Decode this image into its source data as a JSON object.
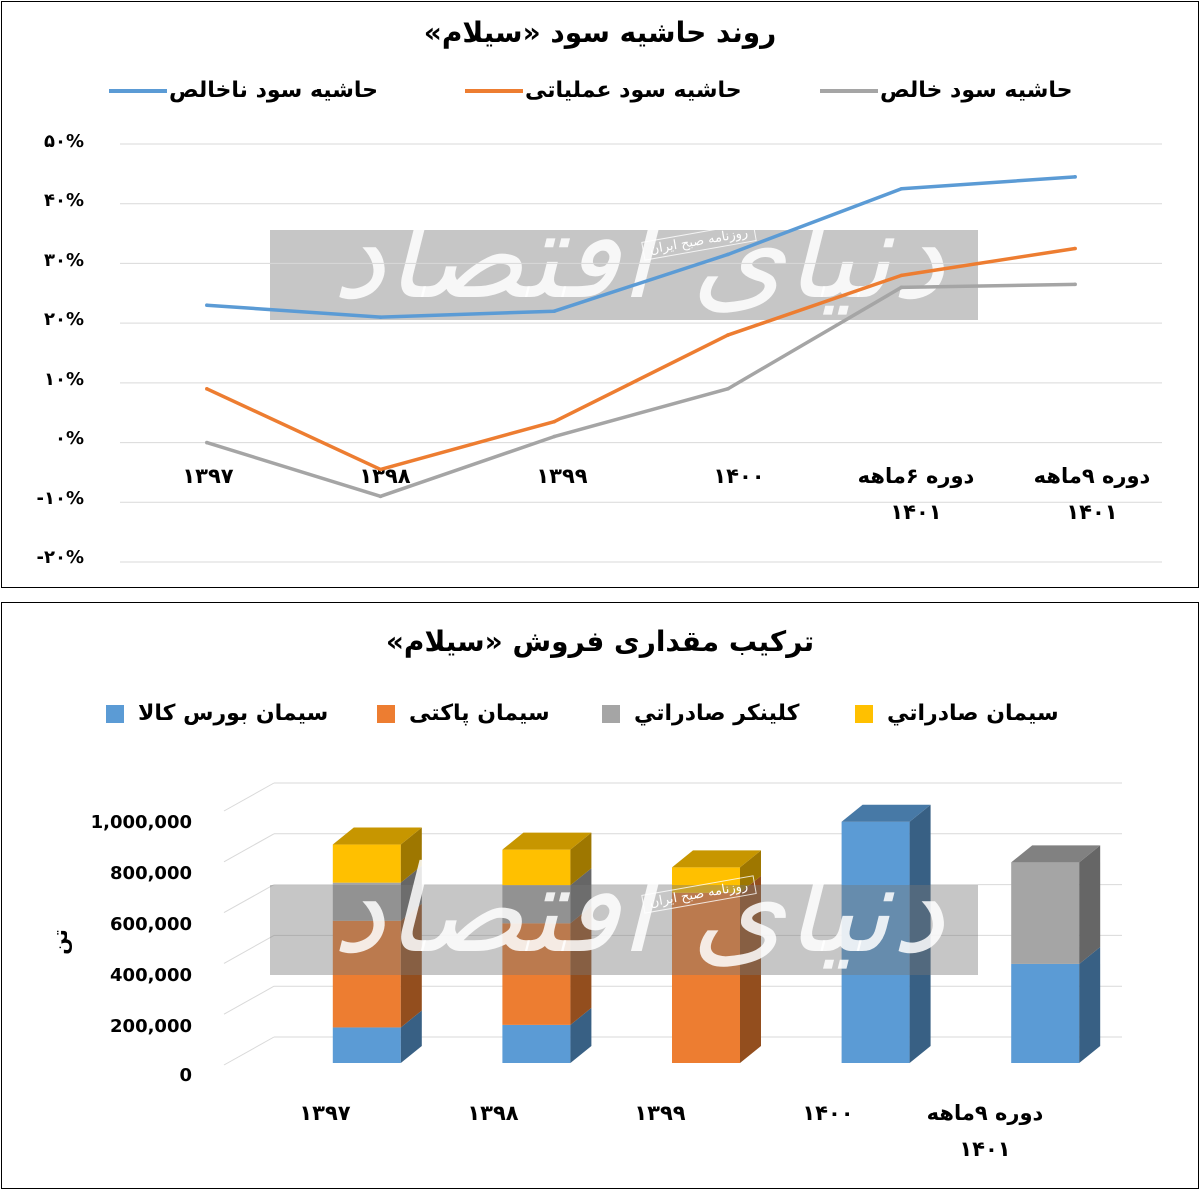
{
  "panel1": {
    "title": "روند حاشیه سود «سیلام»",
    "legend": [
      {
        "name": "حاشیه سود ناخالص",
        "color": "#5B9BD5"
      },
      {
        "name": "حاشیه سود عملیاتی",
        "color": "#ED7D31"
      },
      {
        "name": "حاشیه سود خالص",
        "color": "#A5A5A5"
      }
    ],
    "yticks": [
      "۵۰%",
      "۴۰%",
      "۳۰%",
      "۲۰%",
      "۱۰%",
      "۰%",
      "-۱۰%",
      "-۲۰%"
    ],
    "xticks": [
      "۱۳۹۷",
      "۱۳۹۸",
      "۱۳۹۹",
      "۱۴۰۰",
      "دوره ۶ماهه ۱۴۰۱",
      "دوره ۹ماهه ۱۴۰۱"
    ]
  },
  "panel2": {
    "title": "ترکیب مقداری فروش «سیلام»",
    "legend": [
      {
        "name": "سیمان بورس کالا",
        "color": "#5B9BD5"
      },
      {
        "name": "سیمان پاکتی",
        "color": "#ED7D31"
      },
      {
        "name": "کلینکر صادراتي",
        "color": "#A5A5A5"
      },
      {
        "name": "سیمان صادراتي",
        "color": "#FFC000"
      }
    ],
    "yticks": [
      "1,000,000",
      "800,000",
      "600,000",
      "400,000",
      "200,000",
      "0"
    ],
    "ylabel": "تن",
    "xticks": [
      "۱۳۹۷",
      "۱۳۹۸",
      "۱۳۹۹",
      "۱۴۰۰",
      "دوره ۹ماهه ۱۴۰۱"
    ]
  },
  "watermark": {
    "main": "دنیای اقتصاد",
    "sub": "روزنامه صبح ایران"
  },
  "chart_data": [
    {
      "type": "line",
      "title": "روند حاشیه سود «سیلام»",
      "categories": [
        "۱۳۹۷",
        "۱۳۹۸",
        "۱۳۹۹",
        "۱۴۰۰",
        "دوره ۶ماهه ۱۴۰۱",
        "دوره ۹ماهه ۱۴۰۱"
      ],
      "series": [
        {
          "name": "حاشیه سود ناخالص",
          "color": "#5B9BD5",
          "values": [
            23,
            21,
            22,
            31.5,
            42.5,
            44.5
          ]
        },
        {
          "name": "حاشیه سود عملیاتی",
          "color": "#ED7D31",
          "values": [
            9,
            -4.5,
            3.5,
            18,
            28,
            32.5
          ]
        },
        {
          "name": "حاشیه سود خالص",
          "color": "#A5A5A5",
          "values": [
            0,
            -9,
            1,
            9,
            26,
            26.5
          ]
        }
      ],
      "ylim": [
        -20,
        50
      ],
      "grid": true,
      "legend": "top"
    },
    {
      "type": "bar",
      "stacked": true,
      "title": "ترکیب مقداری فروش «سیلام»",
      "ylabel": "تن",
      "categories": [
        "۱۳۹۷",
        "۱۳۹۸",
        "۱۳۹۹",
        "۱۴۰۰",
        "دوره ۹ماهه ۱۴۰۱"
      ],
      "series": [
        {
          "name": "سیمان بورس کالا",
          "color": "#5B9BD5",
          "values": [
            140000,
            150000,
            0,
            950000,
            390000
          ]
        },
        {
          "name": "سیمان پاکتی",
          "color": "#ED7D31",
          "values": [
            420000,
            400000,
            670000,
            0,
            0
          ]
        },
        {
          "name": "کلینکر صادراتي",
          "color": "#A5A5A5",
          "values": [
            150000,
            150000,
            0,
            0,
            400000
          ]
        },
        {
          "name": "سیمان صادراتي",
          "color": "#FFC000",
          "values": [
            150000,
            140000,
            100000,
            0,
            0
          ]
        }
      ],
      "ylim": [
        0,
        1000000
      ],
      "grid": true,
      "legend": "top"
    }
  ]
}
